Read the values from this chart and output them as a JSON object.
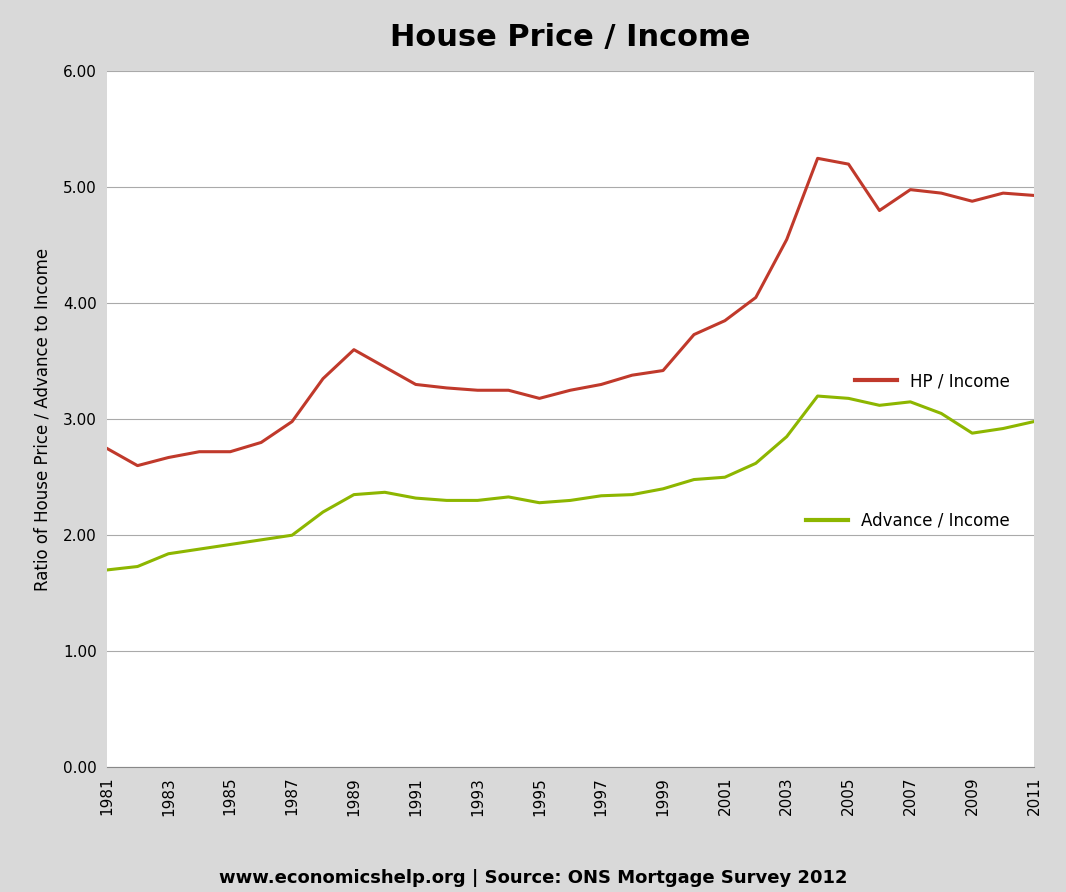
{
  "title": "House Price / Income",
  "ylabel": "Ratio of House Price / Advance to Income",
  "xlabel_source": "www.economicshelp.org | Source: ONS Mortgage Survey 2012",
  "ylim": [
    0.0,
    6.0
  ],
  "yticks": [
    0.0,
    1.0,
    2.0,
    3.0,
    4.0,
    5.0,
    6.0
  ],
  "years": [
    1981,
    1982,
    1983,
    1984,
    1985,
    1986,
    1987,
    1988,
    1989,
    1990,
    1991,
    1992,
    1993,
    1994,
    1995,
    1996,
    1997,
    1998,
    1999,
    2000,
    2001,
    2002,
    2003,
    2004,
    2005,
    2006,
    2007,
    2008,
    2009,
    2010,
    2011
  ],
  "hp_income": [
    2.75,
    2.6,
    2.67,
    2.72,
    2.72,
    2.8,
    2.98,
    3.35,
    3.6,
    3.45,
    3.3,
    3.27,
    3.25,
    3.25,
    3.18,
    3.25,
    3.3,
    3.38,
    3.42,
    3.73,
    3.85,
    4.05,
    4.55,
    5.25,
    5.2,
    4.8,
    4.98,
    4.95,
    4.88,
    4.95,
    4.93
  ],
  "advance_income": [
    1.7,
    1.73,
    1.84,
    1.88,
    1.92,
    1.96,
    2.0,
    2.2,
    2.35,
    2.37,
    2.32,
    2.3,
    2.3,
    2.33,
    2.28,
    2.3,
    2.34,
    2.35,
    2.4,
    2.48,
    2.5,
    2.62,
    2.85,
    3.2,
    3.18,
    3.12,
    3.15,
    3.05,
    2.88,
    2.92,
    2.98
  ],
  "hp_color": "#C0392B",
  "advance_color": "#8DB600",
  "hp_label": "HP / Income",
  "advance_label": "Advance / Income",
  "background_color": "#D9D9D9",
  "plot_background": "#FFFFFF",
  "line_width": 2.2,
  "title_fontsize": 22,
  "axis_label_fontsize": 12,
  "tick_label_fontsize": 11,
  "source_fontsize": 13
}
